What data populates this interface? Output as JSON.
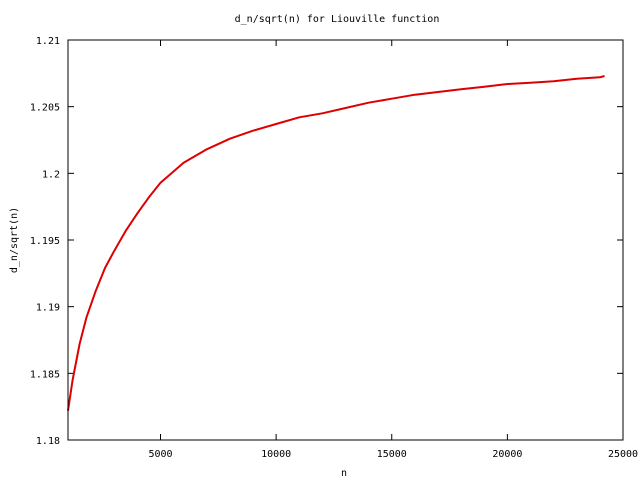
{
  "chart_data": {
    "type": "line",
    "title": "d_n/sqrt(n) for Liouville function",
    "xlabel": "n",
    "ylabel": "d_n/sqrt(n)",
    "xlim": [
      1000,
      25000
    ],
    "ylim": [
      1.18,
      1.21
    ],
    "xticks": [
      5000,
      10000,
      15000,
      20000,
      25000
    ],
    "xtick_labels": [
      "5000",
      "10000",
      "15000",
      "20000",
      "25000"
    ],
    "yticks": [
      1.18,
      1.185,
      1.19,
      1.195,
      1.2,
      1.205,
      1.21
    ],
    "ytick_labels": [
      "1.18",
      "1.185",
      "1.19",
      "1.195",
      "1.2",
      "1.205",
      "1.21"
    ],
    "grid": false,
    "legend": false,
    "series": [
      {
        "color": "#dd0000",
        "x": [
          1000,
          1200,
          1500,
          1800,
          2200,
          2600,
          3000,
          3500,
          4000,
          4500,
          5000,
          6000,
          7000,
          8000,
          9000,
          10000,
          11000,
          12000,
          13000,
          14000,
          15000,
          16000,
          17000,
          18000,
          19000,
          20000,
          21000,
          22000,
          23000,
          24000,
          24200
        ],
        "y": [
          1.1822,
          1.1845,
          1.1872,
          1.1892,
          1.1912,
          1.1929,
          1.1942,
          1.1957,
          1.197,
          1.1982,
          1.1993,
          1.2008,
          1.2018,
          1.2026,
          1.2032,
          1.2037,
          1.2042,
          1.2045,
          1.2049,
          1.2053,
          1.2056,
          1.2059,
          1.2061,
          1.2063,
          1.2065,
          1.2067,
          1.2068,
          1.2069,
          1.2071,
          1.2072,
          1.2073
        ]
      }
    ]
  }
}
